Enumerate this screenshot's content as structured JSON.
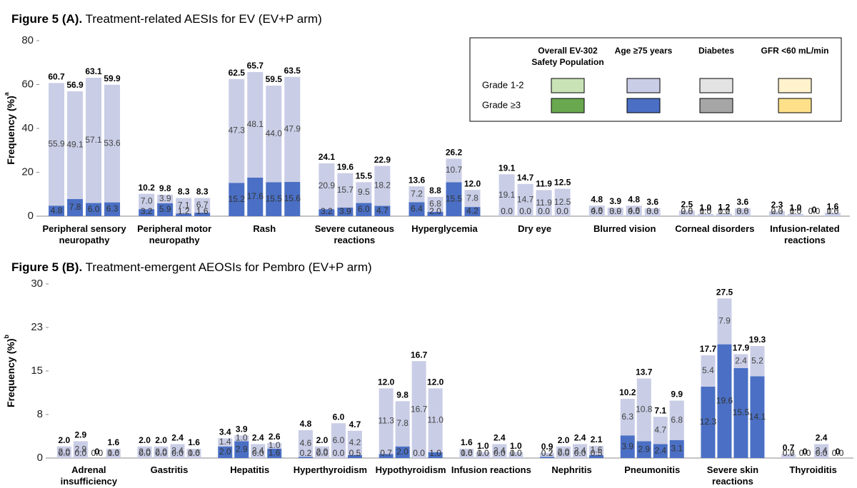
{
  "chart_data": [
    {
      "type": "bar",
      "stacked": true,
      "title_prefix": "Figure 5 (A).",
      "title": "Treatment-related AESIs for EV (EV+P arm)",
      "y_label": "Frequency (%)",
      "y_label_sup": "a",
      "ylim": [
        0,
        80
      ],
      "yticks": [
        0,
        20,
        40,
        60,
        80
      ],
      "colors": {
        "grade_1_2": "#c9cde6",
        "grade_3": "#4a6fc4"
      },
      "categories": [
        "Peripheral sensory neuropathy",
        "Peripheral motor neuropathy",
        "Rash",
        "Severe cutaneous reactions",
        "Hyperglycemia",
        "Dry eye",
        "Blurred vision",
        "Corneal disorders",
        "Infusion-related reactions"
      ],
      "legend": {
        "position": "top-right",
        "grades": [
          "Grade 1-2",
          "Grade ≥3"
        ],
        "colors": [
          [
            "#c9e3b7",
            "#6aa84f"
          ],
          [
            "#c9cde6",
            "#4a6fc4"
          ],
          [
            "#e3e3e3",
            "#a6a6a6"
          ],
          [
            "#fff2cc",
            "#ffe08a"
          ]
        ]
      },
      "series": [
        {
          "name": "Overall EV-302 Safety Population",
          "totals": [
            60.7,
            10.2,
            62.5,
            24.1,
            13.6,
            19.1,
            4.8,
            2.5,
            2.3
          ],
          "total_labels": [
            "60.7",
            "10.2",
            "62.5",
            "24.1",
            "13.6",
            "19.1",
            "4.8",
            "2.5",
            "2.3"
          ],
          "grade_1_2": [
            55.9,
            7.0,
            47.3,
            20.9,
            7.2,
            19.1,
            4.8,
            2.5,
            2.3
          ],
          "grade_1_2_labels": [
            "55.9",
            "7.0",
            "47.3",
            "20.9",
            "7.2",
            "19.1",
            "4.8",
            "2.5",
            "2.3"
          ],
          "grade_3": [
            4.8,
            3.2,
            15.2,
            3.2,
            6.4,
            0,
            0,
            0,
            0
          ],
          "grade_3_labels": [
            "4.8",
            "3.2",
            "15.2",
            "3.2",
            "6.4",
            "0.0",
            "0.0",
            "0.0",
            "0.0"
          ]
        },
        {
          "name": "Age ≥75 years",
          "totals": [
            56.9,
            9.8,
            65.7,
            19.6,
            8.8,
            14.7,
            3.9,
            1.0,
            1.0
          ],
          "total_labels": [
            "56.9",
            "9.8",
            "65.7",
            "19.6",
            "8.8",
            "14.7",
            "3.9",
            "1.0",
            "1.0"
          ],
          "grade_1_2": [
            49.1,
            3.9,
            48.1,
            15.7,
            6.8,
            14.7,
            3.9,
            1.0,
            1.0
          ],
          "grade_1_2_labels": [
            "49.1",
            "3.9",
            "48.1",
            "15.7",
            "6.8",
            "14.7",
            "3.9",
            "1.0",
            "1.0"
          ],
          "grade_3": [
            7.8,
            5.9,
            17.6,
            3.9,
            2.0,
            0,
            0,
            0,
            0
          ],
          "grade_3_labels": [
            "7.8",
            "5.9",
            "17.6",
            "3.9",
            "2.0",
            "0.0",
            "0.0",
            "0.0",
            "0.0"
          ]
        },
        {
          "name": "Diabetes",
          "totals": [
            63.1,
            8.3,
            59.5,
            15.5,
            26.2,
            11.9,
            4.8,
            1.2,
            0
          ],
          "total_labels": [
            "63.1",
            "8.3",
            "59.5",
            "15.5",
            "26.2",
            "11.9",
            "4.8",
            "1.2",
            "0"
          ],
          "grade_1_2": [
            57.1,
            7.1,
            44.0,
            9.5,
            10.7,
            11.9,
            4.8,
            1.2,
            0
          ],
          "grade_1_2_labels": [
            "57.1",
            "7.1",
            "44.0",
            "9.5",
            "10.7",
            "11.9",
            "4.8",
            "1.2",
            "0.0"
          ],
          "grade_3": [
            6.0,
            1.2,
            15.5,
            6.0,
            15.5,
            0,
            0,
            0,
            0
          ],
          "grade_3_labels": [
            "6.0",
            "1.2",
            "15.5",
            "6.0",
            "15.5",
            "0.0",
            "0.0",
            "0.0",
            "0.0"
          ]
        },
        {
          "name": "GFR <60 mL/min",
          "totals": [
            59.9,
            8.3,
            63.5,
            22.9,
            12.0,
            12.5,
            3.6,
            3.6,
            1.6
          ],
          "total_labels": [
            "59.9",
            "8.3",
            "63.5",
            "22.9",
            "12.0",
            "12.5",
            "3.6",
            "3.6",
            "1.6"
          ],
          "grade_1_2": [
            53.6,
            6.7,
            47.9,
            18.2,
            7.8,
            12.5,
            3.6,
            3.6,
            1.6
          ],
          "grade_1_2_labels": [
            "53.6",
            "6.7",
            "47.9",
            "18.2",
            "7.8",
            "12.5",
            "3.6",
            "3.6",
            "1.6"
          ],
          "grade_3": [
            6.3,
            1.6,
            15.6,
            4.7,
            4.2,
            0,
            0,
            0,
            0
          ],
          "grade_3_labels": [
            "6.3",
            "1.6",
            "15.6",
            "4.7",
            "4.2",
            "0.0",
            "0.0",
            "0.0",
            "0.0"
          ]
        }
      ]
    },
    {
      "type": "bar",
      "stacked": true,
      "title_prefix": "Figure 5 (B).",
      "title": "Treatment-emergent AEOSIs for Pembro (EV+P arm)",
      "y_label": "Frequency (%)",
      "y_label_sup": "b",
      "ylim": [
        0,
        30
      ],
      "yticks": [
        0,
        {
          "value": 7.5,
          "label": "8"
        },
        15,
        {
          "value": 22.5,
          "label": "23"
        },
        30
      ],
      "colors": {
        "grade_1_2": "#c9cde6",
        "grade_3": "#4a6fc4"
      },
      "categories": [
        "Adrenal insufficiency",
        "Gastritis",
        "Hepatitis",
        "Hyperthyroidism",
        "Hypothyroidism",
        "Infusion reactions",
        "Nephritis",
        "Pneumonitis",
        "Severe skin reactions",
        "Thyroiditis"
      ],
      "series": [
        {
          "totals": [
            2.0,
            2.0,
            3.4,
            4.8,
            12.0,
            1.6,
            0.9,
            10.2,
            17.7,
            0.7
          ],
          "total_labels": [
            "2.0",
            "2.0",
            "3.4",
            "4.8",
            "12.0",
            "1.6",
            "0.9",
            "10.2",
            "17.7",
            "0.7"
          ],
          "grade_1_2": [
            2.0,
            2.0,
            1.4,
            4.6,
            11.3,
            1.6,
            0.7,
            6.3,
            5.4,
            0.7
          ],
          "grade_1_2_labels": [
            "2.0",
            "2.0",
            "1.4",
            "4.6",
            "11.3",
            "1.6",
            "0.7",
            "6.3",
            "5.4",
            "0.7"
          ],
          "grade_3": [
            0,
            0,
            2.0,
            0.2,
            0.7,
            0,
            0.2,
            3.9,
            12.3,
            0
          ],
          "grade_3_labels": [
            "0.0",
            "0.0",
            "2.0",
            "0.2",
            "0.7",
            "0.0",
            "0.2",
            "3.9",
            "12.3",
            "0.0"
          ]
        },
        {
          "totals": [
            2.9,
            2.0,
            3.9,
            2.0,
            9.8,
            1.0,
            2.0,
            13.7,
            27.5,
            0
          ],
          "total_labels": [
            "2.9",
            "2.0",
            "3.9",
            "2.0",
            "9.8",
            "1.0",
            "2.0",
            "13.7",
            "27.5",
            "0"
          ],
          "grade_1_2": [
            2.9,
            2.0,
            1.0,
            2.0,
            7.8,
            1.0,
            2.0,
            10.8,
            7.9,
            0
          ],
          "grade_1_2_labels": [
            "2.9",
            "2.0",
            "1.0",
            "2.0",
            "7.8",
            "1.0",
            "2.0",
            "10.8",
            "7.9",
            "0.0"
          ],
          "grade_3": [
            0,
            0,
            2.9,
            0,
            2.0,
            0,
            0,
            2.9,
            19.6,
            0
          ],
          "grade_3_labels": [
            "0.0",
            "0.0",
            "2.9",
            "0.0",
            "2.0",
            "0.0",
            "0.0",
            "2.9",
            "19.6",
            "0.0"
          ]
        },
        {
          "totals": [
            0,
            2.4,
            2.4,
            6.0,
            16.7,
            2.4,
            2.4,
            7.1,
            17.9,
            2.4
          ],
          "total_labels": [
            "0",
            "2.4",
            "2.4",
            "6.0",
            "16.7",
            "2.4",
            "2.4",
            "7.1",
            "17.9",
            "2.4"
          ],
          "grade_1_2": [
            0,
            2.4,
            2.4,
            6.0,
            16.7,
            2.4,
            2.4,
            4.7,
            2.4,
            2.4
          ],
          "grade_1_2_labels": [
            "0.0",
            "2.4",
            "2.4",
            "6.0",
            "16.7",
            "2.4",
            "2.4",
            "4.7",
            "2.4",
            "2.4"
          ],
          "grade_3": [
            0,
            0,
            0,
            0,
            0,
            0,
            0,
            2.4,
            15.5,
            0
          ],
          "grade_3_labels": [
            "0.0",
            "0.0",
            "0.0",
            "0.0",
            "0.0",
            "0.0",
            "0.0",
            "2.4",
            "15.5",
            "0.0"
          ]
        },
        {
          "totals": [
            1.6,
            1.6,
            2.6,
            4.7,
            12.0,
            1.0,
            2.1,
            9.9,
            19.3,
            0
          ],
          "total_labels": [
            "1.6",
            "1.6",
            "2.6",
            "4.7",
            "12.0",
            "1.0",
            "2.1",
            "9.9",
            "19.3",
            "0"
          ],
          "grade_1_2": [
            1.6,
            1.6,
            1.0,
            4.2,
            11.0,
            1.0,
            1.6,
            6.8,
            5.2,
            0
          ],
          "grade_1_2_labels": [
            "1.6",
            "1.6",
            "1.0",
            "4.2",
            "11.0",
            "1.0",
            "1.6",
            "6.8",
            "5.2",
            "0.0"
          ],
          "grade_3": [
            0,
            0,
            1.6,
            0.5,
            1.0,
            0,
            0.5,
            3.1,
            14.1,
            0
          ],
          "grade_3_labels": [
            "0.0",
            "0.0",
            "1.6",
            "0.5",
            "1.0",
            "0.0",
            "0.5",
            "3.1",
            "14.1",
            "0.0"
          ]
        }
      ]
    }
  ]
}
